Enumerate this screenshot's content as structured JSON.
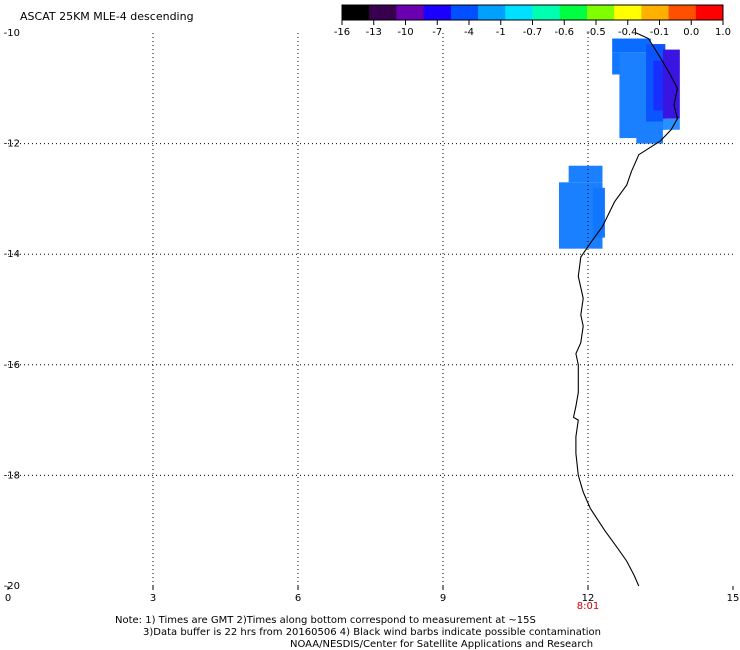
{
  "title": "ASCAT 25KM MLE-4 descending",
  "colorbar": {
    "colors": [
      "#000000",
      "#3a0050",
      "#6a00b0",
      "#1a00ff",
      "#0050ff",
      "#00a0ff",
      "#00e0ff",
      "#00ffb0",
      "#00ff40",
      "#80ff00",
      "#ffff00",
      "#ffb000",
      "#ff5000",
      "#ff0000"
    ],
    "tick_labels": [
      "-16",
      "-13",
      "-10",
      "-7",
      "-4",
      "-1",
      "-0.7",
      "-0.6",
      "-0.5",
      "-0.4",
      "-0.1",
      "0.0",
      "1.0"
    ]
  },
  "map": {
    "lon_range": [
      0,
      15
    ],
    "lat_range": [
      -20,
      -10
    ],
    "x_ticks": [
      {
        "value": 0,
        "label": "0"
      },
      {
        "value": 3,
        "label": "3"
      },
      {
        "value": 6,
        "label": "6"
      },
      {
        "value": 9,
        "label": "9"
      },
      {
        "value": 12,
        "label": "12"
      },
      {
        "value": 15,
        "label": "15"
      }
    ],
    "y_ticks": [
      {
        "value": -10,
        "label": "-10"
      },
      {
        "value": -12,
        "label": "-12"
      },
      {
        "value": -14,
        "label": "-14"
      },
      {
        "value": -16,
        "label": "-16"
      },
      {
        "value": -18,
        "label": "-18"
      },
      {
        "value": -20,
        "label": "-20"
      }
    ],
    "grid": "dotted",
    "time_label": {
      "text": "8:01",
      "lon": 12.0,
      "color": "#cc0000"
    },
    "coastline": [
      [
        13.0,
        -10.0
      ],
      [
        13.25,
        -10.1
      ],
      [
        13.5,
        -10.45
      ],
      [
        13.7,
        -10.75
      ],
      [
        13.85,
        -11.0
      ],
      [
        13.78,
        -11.3
      ],
      [
        13.85,
        -11.55
      ],
      [
        13.72,
        -11.75
      ],
      [
        13.5,
        -11.95
      ],
      [
        13.05,
        -12.2
      ],
      [
        12.9,
        -12.5
      ],
      [
        12.8,
        -12.75
      ],
      [
        12.55,
        -13.05
      ],
      [
        12.3,
        -13.5
      ],
      [
        12.05,
        -13.8
      ],
      [
        11.85,
        -14.05
      ],
      [
        11.8,
        -14.4
      ],
      [
        11.9,
        -14.8
      ],
      [
        11.85,
        -15.1
      ],
      [
        11.9,
        -15.3
      ],
      [
        11.85,
        -15.6
      ],
      [
        11.75,
        -15.8
      ],
      [
        11.8,
        -16.0
      ],
      [
        11.8,
        -16.5
      ],
      [
        11.75,
        -16.75
      ],
      [
        11.7,
        -16.95
      ],
      [
        11.8,
        -17.0
      ],
      [
        11.75,
        -17.3
      ],
      [
        11.75,
        -17.6
      ],
      [
        11.8,
        -18.0
      ],
      [
        11.9,
        -18.3
      ],
      [
        12.05,
        -18.6
      ],
      [
        12.35,
        -19.0
      ],
      [
        12.6,
        -19.3
      ],
      [
        12.8,
        -19.55
      ],
      [
        12.95,
        -19.8
      ],
      [
        13.05,
        -20.0
      ]
    ],
    "data_cells": [
      {
        "lon": [
          12.5,
          13.3
        ],
        "lat": [
          -10.1,
          -10.35
        ],
        "color": "#0a6cff"
      },
      {
        "lon": [
          12.5,
          12.75
        ],
        "lat": [
          -10.35,
          -10.75
        ],
        "color": "#1277ff"
      },
      {
        "lon": [
          12.65,
          13.2
        ],
        "lat": [
          -10.35,
          -11.9
        ],
        "color": "#1a80ff"
      },
      {
        "lon": [
          13.2,
          13.6
        ],
        "lat": [
          -10.2,
          -11.75
        ],
        "color": "#0b55ff"
      },
      {
        "lon": [
          13.35,
          13.7
        ],
        "lat": [
          -10.5,
          -11.4
        ],
        "color": "#1830ff"
      },
      {
        "lon": [
          13.55,
          13.9
        ],
        "lat": [
          -10.3,
          -11.55
        ],
        "color": "#3a14e0"
      },
      {
        "lon": [
          13.0,
          13.55
        ],
        "lat": [
          -11.6,
          -12.0
        ],
        "color": "#1a80ff"
      },
      {
        "lon": [
          13.55,
          13.9
        ],
        "lat": [
          -11.55,
          -11.75
        ],
        "color": "#2a90ff"
      },
      {
        "lon": [
          11.4,
          12.3
        ],
        "lat": [
          -12.7,
          -13.9
        ],
        "color": "#1a80ff"
      },
      {
        "lon": [
          11.6,
          12.3
        ],
        "lat": [
          -12.4,
          -12.7
        ],
        "color": "#1a80ff"
      },
      {
        "lon": [
          12.1,
          12.35
        ],
        "lat": [
          -12.8,
          -13.7
        ],
        "color": "#1277ff"
      }
    ]
  },
  "notes": {
    "line1": "Note: 1) Times are GMT 2)Times along bottom correspond to measurement at ~15S",
    "line2": "3)Data buffer is 22 hrs from 20160506 4) Black wind barbs indicate possible contamination",
    "line3": "NOAA/NESDIS/Center for Satellite Applications and Research"
  }
}
